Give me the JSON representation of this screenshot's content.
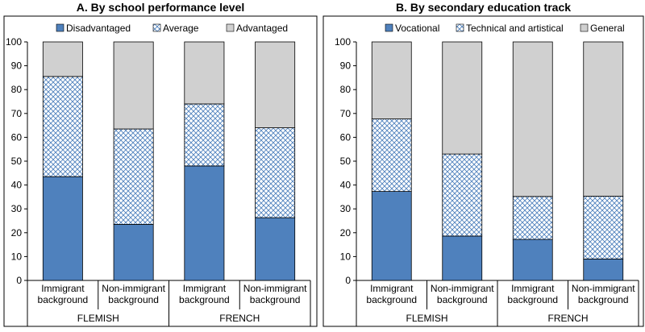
{
  "colors": {
    "disadvantaged": "#4f81bd",
    "average_hatch": "#4f81bd",
    "advantaged": "#d0d0d0",
    "vocational": "#4f81bd",
    "technical": "#4f81bd",
    "general": "#d0d0d0"
  },
  "chart_data": [
    {
      "type": "bar",
      "stacked": true,
      "title": "A. By school performance level",
      "categories": [
        "Immigrant background",
        "Non-immigrant background",
        "Immigrant background",
        "Non-immigrant background"
      ],
      "category_lines": [
        [
          "Immigrant",
          "background"
        ],
        [
          "Non-immigrant",
          "background"
        ],
        [
          "Immigrant",
          "background"
        ],
        [
          "Non-immigrant",
          "background"
        ]
      ],
      "groups": [
        {
          "label": "FLEMISH",
          "span": [
            0,
            1
          ]
        },
        {
          "label": "FRENCH",
          "span": [
            2,
            3
          ]
        }
      ],
      "ylim": [
        0,
        100
      ],
      "yticks": [
        0,
        10,
        20,
        30,
        40,
        50,
        60,
        70,
        80,
        90,
        100
      ],
      "grid": false,
      "legend": "top",
      "series": [
        {
          "name": "Disadvantaged",
          "style": "solid-blue",
          "values": [
            43.5,
            23.5,
            48,
            26.3
          ]
        },
        {
          "name": "Average",
          "style": "hatch",
          "values": [
            42,
            40,
            26,
            37.7
          ]
        },
        {
          "name": "Advantaged",
          "style": "solid-grey",
          "values": [
            14.5,
            36.5,
            26,
            36
          ]
        }
      ]
    },
    {
      "type": "bar",
      "stacked": true,
      "title": "B. By secondary education track",
      "categories": [
        "Immigrant background",
        "Non-immigrant background",
        "Immigrant background",
        "Non-immigrant background"
      ],
      "category_lines": [
        [
          "Immigrant",
          "background"
        ],
        [
          "Non-immigrant",
          "background"
        ],
        [
          "Immigrant",
          "background"
        ],
        [
          "Non-immigrant",
          "background"
        ]
      ],
      "groups": [
        {
          "label": "FLEMISH",
          "span": [
            0,
            1
          ]
        },
        {
          "label": "FRENCH",
          "span": [
            2,
            3
          ]
        }
      ],
      "ylim": [
        0,
        100
      ],
      "yticks": [
        0,
        10,
        20,
        30,
        40,
        50,
        60,
        70,
        80,
        90,
        100
      ],
      "grid": false,
      "legend": "top",
      "series": [
        {
          "name": "Vocational",
          "style": "solid-blue",
          "values": [
            37.3,
            18.6,
            17.2,
            9
          ]
        },
        {
          "name": "Technical and artistical",
          "style": "hatch",
          "values": [
            30.4,
            34.4,
            18,
            26.3
          ]
        },
        {
          "name": "General",
          "style": "solid-grey",
          "values": [
            32.3,
            47,
            64.8,
            64.7
          ]
        }
      ]
    }
  ]
}
